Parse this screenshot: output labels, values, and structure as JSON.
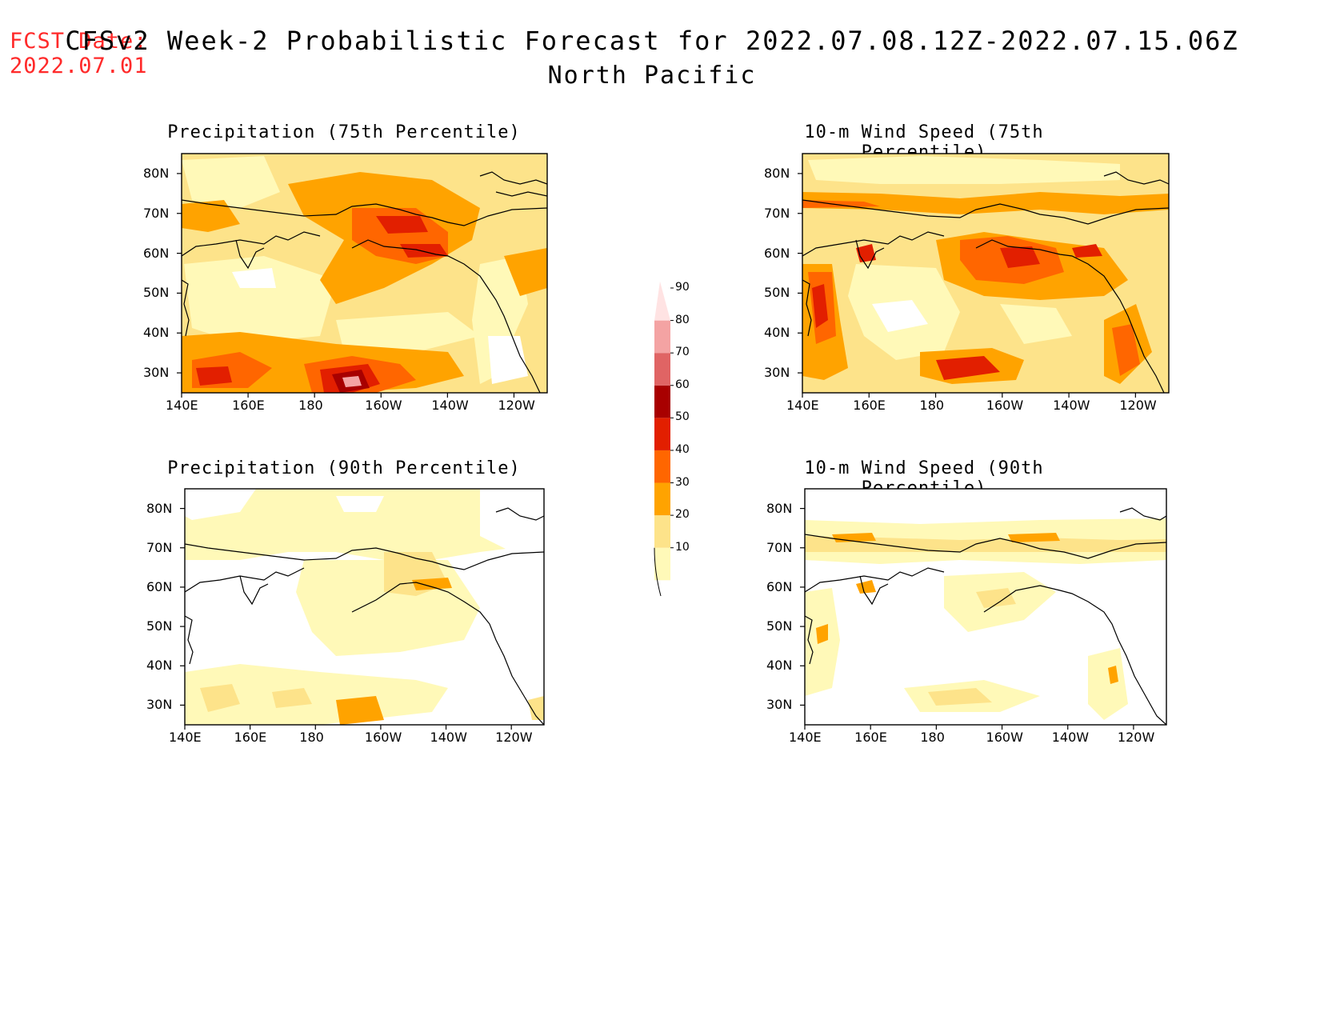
{
  "header": {
    "fcst_label": "FCST Date:",
    "fcst_date": "2022.07.01",
    "title_line1": "CFSv2 Week-2 Probabilistic Forecast for 2022.07.08.12Z-2022.07.15.06Z",
    "title_line2": "North Pacific"
  },
  "panels": [
    {
      "id": "precip75",
      "title": "Precipitation (75th Percentile)"
    },
    {
      "id": "wind75",
      "title": "10-m Wind Speed (75th Percentile)"
    },
    {
      "id": "precip90",
      "title": "Precipitation (90th Percentile)"
    },
    {
      "id": "wind90",
      "title": "10-m Wind Speed (90th Percentile)"
    }
  ],
  "lat_labels": [
    "80N",
    "70N",
    "60N",
    "50N",
    "40N",
    "30N"
  ],
  "lon_labels": [
    "140E",
    "160E",
    "180",
    "160W",
    "140W",
    "120W"
  ],
  "colorbar": {
    "levels": [
      "10",
      "20",
      "30",
      "40",
      "50",
      "60",
      "70",
      "80",
      "90"
    ],
    "colors": [
      "#fff9b8",
      "#fde38a",
      "#ffa300",
      "#ff6600",
      "#e21f00",
      "#a80000",
      "#e06464",
      "#f4a3a3",
      "#ffe3e3"
    ]
  }
}
